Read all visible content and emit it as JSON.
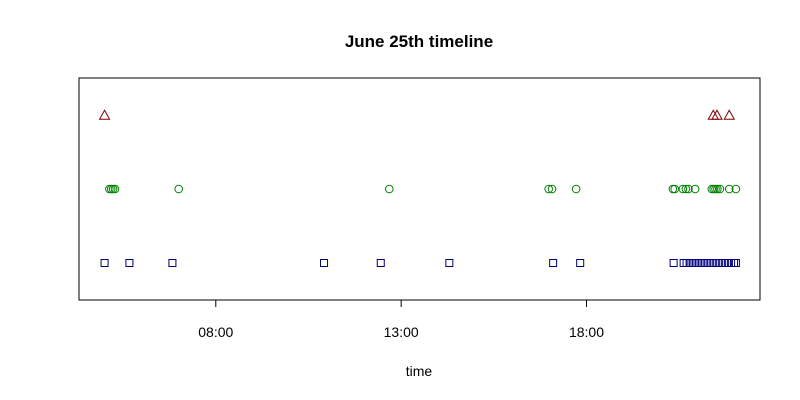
{
  "chart_data": {
    "type": "scatter",
    "title": "June 25th timeline",
    "xlabel": "time",
    "ylabel": "",
    "x_unit": "hours of day",
    "xlim": [
      4.31,
      22.68
    ],
    "ylim": [
      0.5,
      3.5
    ],
    "x_ticks": [
      {
        "value": 8,
        "label": "08:00"
      },
      {
        "value": 13,
        "label": "13:00"
      },
      {
        "value": 18,
        "label": "18:00"
      }
    ],
    "y_axis_visible": false,
    "grid": false,
    "legend": "none",
    "series": [
      {
        "marker": "square",
        "color": "#00007f",
        "y": 1,
        "x": [
          5.0,
          5.67,
          6.83,
          10.92,
          12.45,
          14.3,
          17.1,
          17.83,
          20.35,
          20.62,
          20.7,
          20.78,
          20.86,
          20.94,
          21.02,
          21.1,
          21.18,
          21.26,
          21.34,
          21.42,
          21.5,
          21.58,
          21.66,
          21.74,
          21.82,
          21.9,
          21.98,
          22.03
        ]
      },
      {
        "marker": "circle",
        "color": "#007f00",
        "y": 2,
        "x": [
          5.13,
          5.18,
          5.23,
          5.28,
          7.0,
          12.68,
          16.98,
          17.07,
          17.72,
          20.33,
          20.38,
          20.6,
          20.68,
          20.75,
          20.93,
          21.38,
          21.43,
          21.48,
          21.53,
          21.6,
          21.85,
          22.03
        ]
      },
      {
        "marker": "triangle",
        "color": "#7f0000",
        "y": 3,
        "x": [
          5.0,
          21.42,
          21.52,
          21.85
        ]
      }
    ]
  }
}
